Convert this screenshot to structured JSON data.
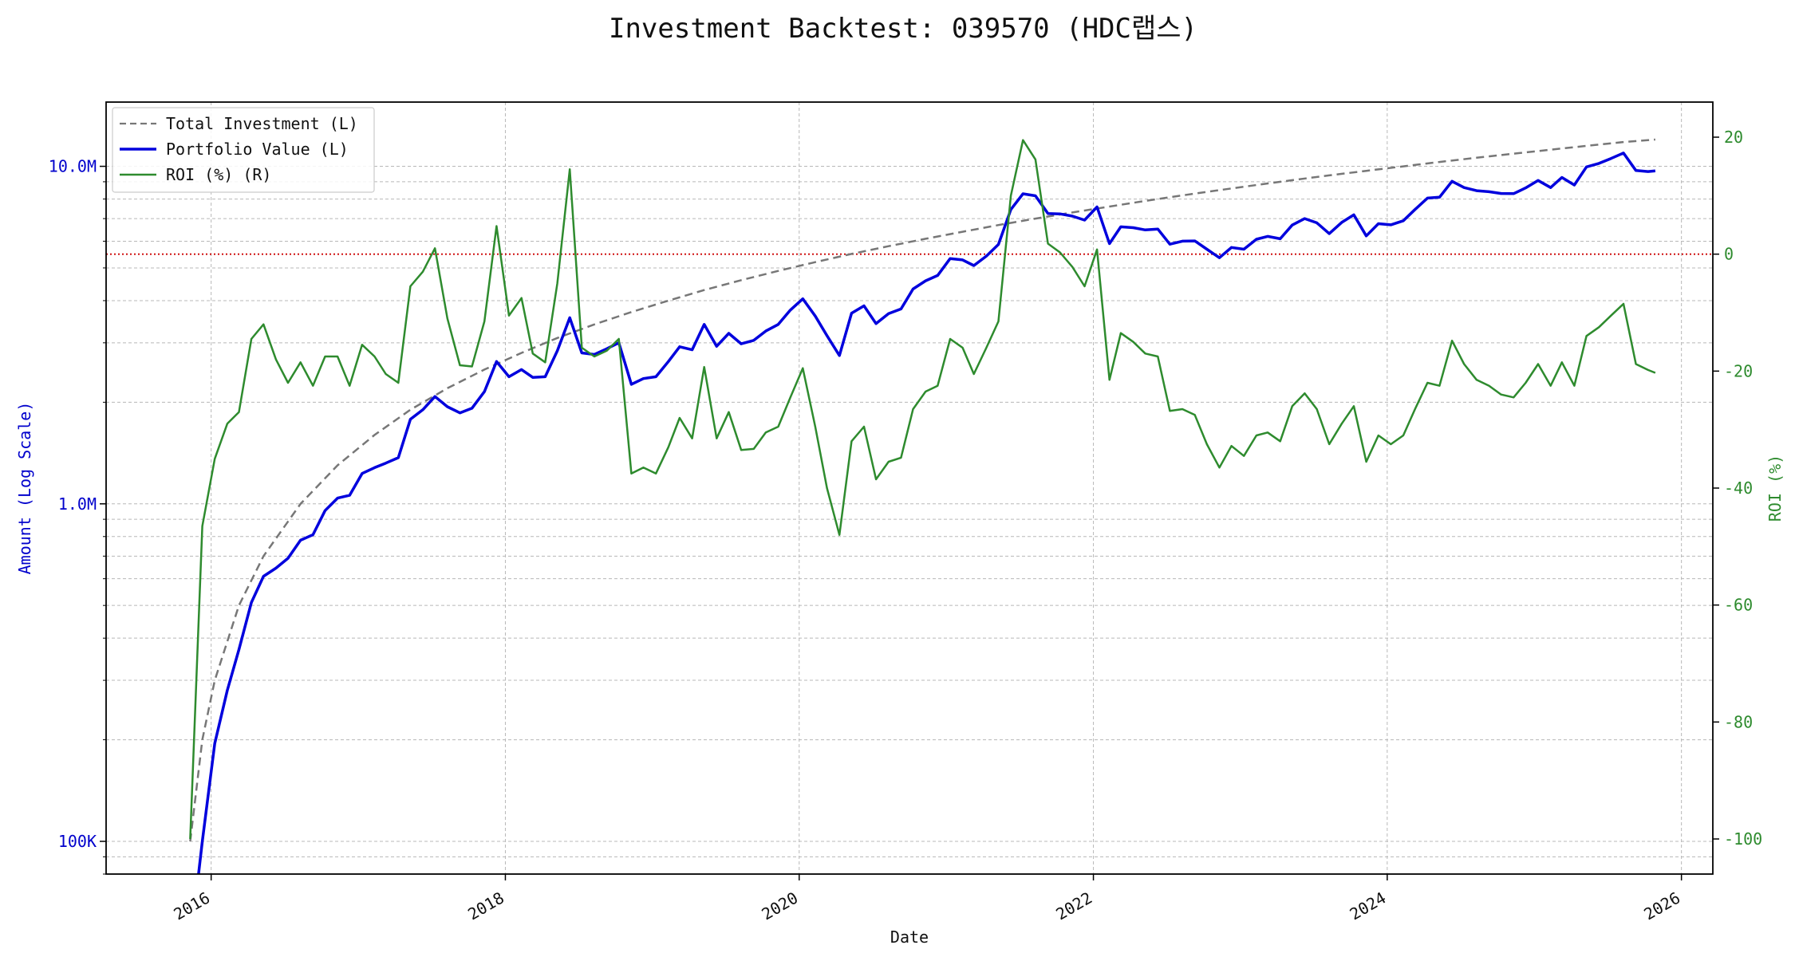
{
  "chart_data": {
    "type": "line",
    "title": "Investment Backtest: 039570 (HDC랩스)",
    "xlabel": "Date",
    "ylabel_left": "Amount (Log Scale)",
    "ylabel_right": "ROI (%)",
    "left_scale": "log",
    "left_ylim": [
      80000,
      15500000
    ],
    "right_ylim": [
      -106,
      26
    ],
    "xlim": [
      "2015-04-15",
      "2026-03-20"
    ],
    "grid": true,
    "legend_position": "top-left",
    "x_ticks": [
      "2016",
      "2018",
      "2020",
      "2022",
      "2024",
      "2026"
    ],
    "left_ticks": [
      {
        "value": 100000,
        "label": "100K"
      },
      {
        "value": 1000000,
        "label": "1.0M"
      },
      {
        "value": 10000000,
        "label": "10.0M"
      }
    ],
    "right_ticks": [
      20,
      0,
      -20,
      -40,
      -60,
      -80,
      -100
    ],
    "reference_line": {
      "axis": "right",
      "value": 0,
      "color": "#cc0000",
      "style": "dotted"
    },
    "colors": {
      "total_investment": "#777777",
      "portfolio_value": "#0000dd",
      "roi": "#2e8b2e",
      "left_axis": "#0000cc",
      "right_axis": "#2e8b2e"
    },
    "series": [
      {
        "name": "Total Investment (L)",
        "axis": "left",
        "style": "dashed",
        "x": [
          "2015-11-10",
          "2015-12-10",
          "2016-01-10",
          "2016-03-10",
          "2016-05-10",
          "2016-08-10",
          "2016-11-10",
          "2017-02-10",
          "2017-05-10",
          "2017-08-10",
          "2017-11-10",
          "2018-02-10",
          "2018-05-10",
          "2018-08-10",
          "2018-11-10",
          "2019-02-10",
          "2019-05-10",
          "2019-08-10",
          "2019-11-10",
          "2020-02-10",
          "2020-05-10",
          "2020-08-10",
          "2020-11-10",
          "2021-02-10",
          "2021-05-10",
          "2021-08-10",
          "2021-11-10",
          "2022-02-10",
          "2022-05-10",
          "2022-08-10",
          "2022-11-10",
          "2023-02-10",
          "2023-05-10",
          "2023-08-10",
          "2023-11-10",
          "2024-02-10",
          "2024-05-10",
          "2024-08-10",
          "2024-11-10",
          "2025-02-10",
          "2025-05-10",
          "2025-08-10",
          "2025-10-28"
        ],
        "values": [
          100000,
          200000,
          300000,
          500000,
          700000,
          1000000,
          1300000,
          1600000,
          1900000,
          2200000,
          2500000,
          2800000,
          3100000,
          3400000,
          3700000,
          4000000,
          4300000,
          4600000,
          4900000,
          5200000,
          5500000,
          5800000,
          6100000,
          6400000,
          6700000,
          7000000,
          7300000,
          7600000,
          7900000,
          8200000,
          8500000,
          8800000,
          9100000,
          9400000,
          9700000,
          10000000,
          10300000,
          10600000,
          10900000,
          11200000,
          11500000,
          11800000,
          12000000
        ]
      },
      {
        "name": "Portfolio Value (L)",
        "axis": "left",
        "style": "solid",
        "x": [
          "2015-11-28",
          "2015-12-10",
          "2016-01-10",
          "2016-02-10",
          "2016-03-10",
          "2016-04-10",
          "2016-05-10",
          "2016-06-10",
          "2016-07-10",
          "2016-08-10",
          "2016-09-10",
          "2016-10-10",
          "2016-11-10",
          "2016-12-10",
          "2017-01-10",
          "2017-02-10",
          "2017-03-10",
          "2017-04-10",
          "2017-05-10",
          "2017-06-10",
          "2017-07-10",
          "2017-08-10",
          "2017-09-10",
          "2017-10-10",
          "2017-11-10",
          "2017-12-10",
          "2018-01-10",
          "2018-02-10",
          "2018-03-10",
          "2018-04-10",
          "2018-05-10",
          "2018-06-10",
          "2018-07-10",
          "2018-08-10",
          "2018-09-10",
          "2018-10-10",
          "2018-11-10",
          "2018-12-10",
          "2019-01-10",
          "2019-02-10",
          "2019-03-10",
          "2019-04-10",
          "2019-05-10",
          "2019-06-10",
          "2019-07-10",
          "2019-08-10",
          "2019-09-10",
          "2019-10-10",
          "2019-11-10",
          "2019-12-10",
          "2020-01-10",
          "2020-02-10",
          "2020-03-10",
          "2020-04-10",
          "2020-05-10",
          "2020-06-10",
          "2020-07-10",
          "2020-08-10",
          "2020-09-10",
          "2020-10-10",
          "2020-11-10",
          "2020-12-10",
          "2021-01-10",
          "2021-02-10",
          "2021-03-10",
          "2021-04-10",
          "2021-05-10",
          "2021-06-10",
          "2021-07-10",
          "2021-08-10",
          "2021-09-10",
          "2021-10-10",
          "2021-11-10",
          "2021-12-10",
          "2022-01-10",
          "2022-02-10",
          "2022-03-10",
          "2022-04-10",
          "2022-05-10",
          "2022-06-10",
          "2022-07-10",
          "2022-08-10",
          "2022-09-10",
          "2022-10-10",
          "2022-11-10",
          "2022-12-10",
          "2023-01-10",
          "2023-02-10",
          "2023-03-10",
          "2023-04-10",
          "2023-05-10",
          "2023-06-10",
          "2023-07-10",
          "2023-08-10",
          "2023-09-10",
          "2023-10-10",
          "2023-11-10",
          "2023-12-10",
          "2024-01-10",
          "2024-02-10",
          "2024-03-10",
          "2024-04-10",
          "2024-05-10",
          "2024-06-10",
          "2024-07-10",
          "2024-08-10",
          "2024-09-10",
          "2024-10-10",
          "2024-11-10",
          "2024-12-10",
          "2025-01-10",
          "2025-02-10",
          "2025-03-10",
          "2025-04-10",
          "2025-05-10",
          "2025-06-10",
          "2025-07-10",
          "2025-08-10",
          "2025-09-10",
          "2025-10-10",
          "2025-10-28"
        ],
        "values": [
          75000,
          100000,
          195000,
          280000,
          370000,
          510000,
          610000,
          645000,
          690000,
          780000,
          810000,
          955000,
          1040000,
          1060000,
          1230000,
          1280000,
          1320000,
          1370000,
          1780000,
          1900000,
          2080000,
          1940000,
          1860000,
          1920000,
          2150000,
          2640000,
          2380000,
          2500000,
          2370000,
          2380000,
          2840000,
          3560000,
          2800000,
          2770000,
          2880000,
          3000000,
          2260000,
          2350000,
          2380000,
          2640000,
          2920000,
          2860000,
          3400000,
          2930000,
          3200000,
          2980000,
          3050000,
          3250000,
          3400000,
          3750000,
          4050000,
          3600000,
          3150000,
          2750000,
          3670000,
          3860000,
          3420000,
          3660000,
          3780000,
          4330000,
          4580000,
          4750000,
          5330000,
          5280000,
          5080000,
          5420000,
          5870000,
          7450000,
          8290000,
          8180000,
          7250000,
          7230000,
          7120000,
          6930000,
          7580000,
          5900000,
          6620000,
          6580000,
          6480000,
          6520000,
          5880000,
          6000000,
          6010000,
          5680000,
          5360000,
          5750000,
          5680000,
          6080000,
          6200000,
          6100000,
          6700000,
          7000000,
          6800000,
          6320000,
          6820000,
          7180000,
          6220000,
          6760000,
          6710000,
          6900000,
          7450000,
          8050000,
          8100000,
          9030000,
          8650000,
          8470000,
          8410000,
          8310000,
          8300000,
          8630000,
          9080000,
          8650000,
          9270000,
          8800000,
          9960000,
          10200000,
          10550000,
          10950000,
          9720000,
          9650000,
          9700000
        ]
      },
      {
        "name": "ROI (%) (R)",
        "axis": "right",
        "style": "solid",
        "x": [
          "2015-11-10",
          "2015-12-10",
          "2016-01-10",
          "2016-02-10",
          "2016-03-10",
          "2016-04-10",
          "2016-05-10",
          "2016-06-10",
          "2016-07-10",
          "2016-08-10",
          "2016-09-10",
          "2016-10-10",
          "2016-11-10",
          "2016-12-10",
          "2017-01-10",
          "2017-02-10",
          "2017-03-10",
          "2017-04-10",
          "2017-05-10",
          "2017-06-10",
          "2017-07-10",
          "2017-08-10",
          "2017-09-10",
          "2017-10-10",
          "2017-11-10",
          "2017-12-10",
          "2018-01-10",
          "2018-02-10",
          "2018-03-10",
          "2018-04-10",
          "2018-05-10",
          "2018-06-10",
          "2018-07-10",
          "2018-08-10",
          "2018-09-10",
          "2018-10-10",
          "2018-11-10",
          "2018-12-10",
          "2019-01-10",
          "2019-02-10",
          "2019-03-10",
          "2019-04-10",
          "2019-05-10",
          "2019-06-10",
          "2019-07-10",
          "2019-08-10",
          "2019-09-10",
          "2019-10-10",
          "2019-11-10",
          "2019-12-10",
          "2020-01-10",
          "2020-02-10",
          "2020-03-10",
          "2020-04-10",
          "2020-05-10",
          "2020-06-10",
          "2020-07-10",
          "2020-08-10",
          "2020-09-10",
          "2020-10-10",
          "2020-11-10",
          "2020-12-10",
          "2021-01-10",
          "2021-02-10",
          "2021-03-10",
          "2021-04-10",
          "2021-05-10",
          "2021-06-10",
          "2021-07-10",
          "2021-08-10",
          "2021-09-10",
          "2021-10-10",
          "2021-11-10",
          "2021-12-10",
          "2022-01-10",
          "2022-02-10",
          "2022-03-10",
          "2022-04-10",
          "2022-05-10",
          "2022-06-10",
          "2022-07-10",
          "2022-08-10",
          "2022-09-10",
          "2022-10-10",
          "2022-11-10",
          "2022-12-10",
          "2023-01-10",
          "2023-02-10",
          "2023-03-10",
          "2023-04-10",
          "2023-05-10",
          "2023-06-10",
          "2023-07-10",
          "2023-08-10",
          "2023-09-10",
          "2023-10-10",
          "2023-11-10",
          "2023-12-10",
          "2024-01-10",
          "2024-02-10",
          "2024-03-10",
          "2024-04-10",
          "2024-05-10",
          "2024-06-10",
          "2024-07-10",
          "2024-08-10",
          "2024-09-10",
          "2024-10-10",
          "2024-11-10",
          "2024-12-10",
          "2025-01-10",
          "2025-02-10",
          "2025-03-10",
          "2025-04-10",
          "2025-05-10",
          "2025-06-10",
          "2025-07-10",
          "2025-08-10",
          "2025-09-10",
          "2025-10-10",
          "2025-10-28"
        ],
        "values": [
          -100,
          -46.5,
          -35,
          -29,
          -27,
          -14.5,
          -12,
          -18,
          -22,
          -18.5,
          -22.5,
          -17.5,
          -17.5,
          -22.5,
          -15.5,
          -17.5,
          -20.5,
          -22,
          -5.5,
          -3,
          1,
          -11,
          -19,
          -19.2,
          -11.5,
          4.8,
          -10.5,
          -7.5,
          -17,
          -18.5,
          -5,
          14.5,
          -16,
          -17.5,
          -16.5,
          -14.5,
          -37.5,
          -36.5,
          -37.5,
          -33,
          -28,
          -31.5,
          -19.3,
          -31.5,
          -27,
          -33.5,
          -33.3,
          -30.5,
          -29.5,
          -24.5,
          -19.5,
          -29.5,
          -40,
          -48,
          -32,
          -29.5,
          -38.5,
          -35.5,
          -34.8,
          -26.5,
          -23.5,
          -22.5,
          -14.5,
          -16,
          -20.5,
          -16,
          -11.5,
          10,
          19.5,
          16.2,
          1.8,
          0.3,
          -2.2,
          -5.5,
          0.8,
          -21.5,
          -13.5,
          -15,
          -17,
          -17.5,
          -26.8,
          -26.5,
          -27.5,
          -32.5,
          -36.5,
          -32.8,
          -34.5,
          -31,
          -30.5,
          -32,
          -26,
          -23.8,
          -26.5,
          -32.5,
          -29,
          -26,
          -35.5,
          -31,
          -32.5,
          -31,
          -26.5,
          -22,
          -22.5,
          -14.8,
          -18.8,
          -21.5,
          -22.5,
          -24,
          -24.5,
          -22,
          -18.8,
          -22.5,
          -18.5,
          -22.5,
          -14,
          -12.5,
          -10.5,
          -8.5,
          -18.8,
          -19.8,
          -20.3
        ]
      }
    ]
  }
}
